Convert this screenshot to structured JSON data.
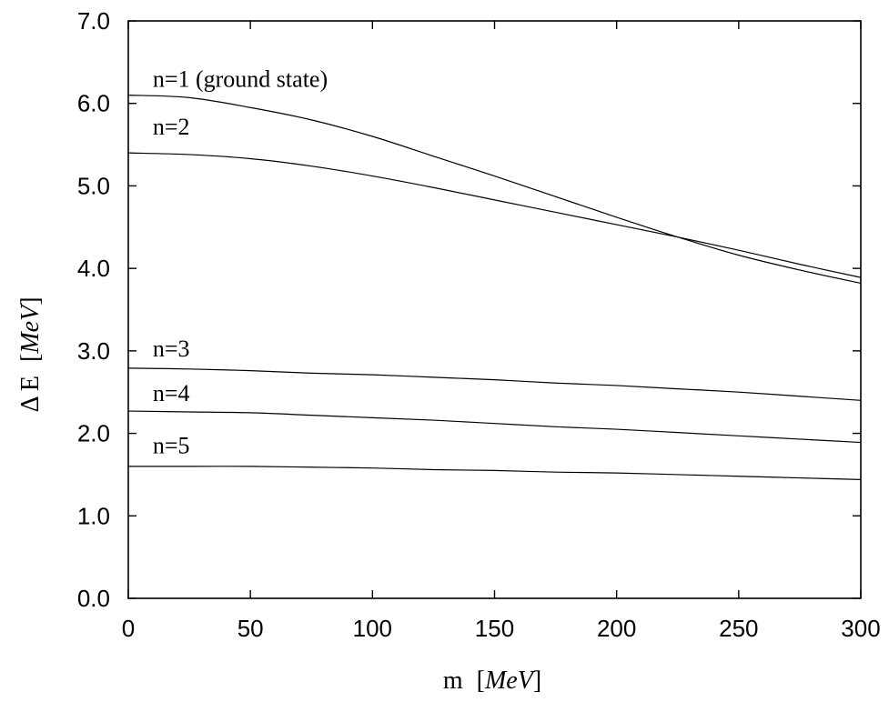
{
  "chart_data": {
    "type": "line",
    "title": "",
    "xlabel": {
      "symbol": "m",
      "unit_open": "[",
      "unit": "MeV",
      "unit_close": "]"
    },
    "ylabel": {
      "symbol": "Δ E",
      "unit_open": "[",
      "unit": "MeV",
      "unit_close": "]"
    },
    "xlim": [
      0,
      300
    ],
    "ylim": [
      0.0,
      7.0
    ],
    "x_ticks": [
      0,
      50,
      100,
      150,
      200,
      250,
      300
    ],
    "x_tick_labels": [
      "0",
      "50",
      "100",
      "150",
      "200",
      "250",
      "300"
    ],
    "y_ticks": [
      0.0,
      1.0,
      2.0,
      3.0,
      4.0,
      5.0,
      6.0,
      7.0
    ],
    "y_tick_labels": [
      "0.0",
      "1.0",
      "2.0",
      "3.0",
      "4.0",
      "5.0",
      "6.0",
      "7.0"
    ],
    "grid": false,
    "x": [
      0,
      25,
      50,
      75,
      100,
      125,
      150,
      175,
      200,
      225,
      250,
      275,
      300
    ],
    "series": [
      {
        "name": "n=1 (ground state)",
        "values": [
          6.1,
          6.07,
          5.95,
          5.8,
          5.6,
          5.36,
          5.12,
          4.87,
          4.62,
          4.38,
          4.16,
          3.98,
          3.82
        ]
      },
      {
        "name": "n=2",
        "values": [
          5.4,
          5.38,
          5.33,
          5.24,
          5.12,
          4.98,
          4.83,
          4.68,
          4.53,
          4.38,
          4.22,
          4.05,
          3.89
        ]
      },
      {
        "name": "n=3",
        "values": [
          2.79,
          2.78,
          2.76,
          2.73,
          2.71,
          2.68,
          2.65,
          2.61,
          2.58,
          2.54,
          2.5,
          2.45,
          2.4
        ]
      },
      {
        "name": "n=4",
        "values": [
          2.27,
          2.26,
          2.25,
          2.22,
          2.19,
          2.16,
          2.12,
          2.08,
          2.05,
          2.01,
          1.97,
          1.93,
          1.89
        ]
      },
      {
        "name": "n=5",
        "values": [
          1.6,
          1.6,
          1.6,
          1.59,
          1.58,
          1.56,
          1.55,
          1.53,
          1.52,
          1.5,
          1.48,
          1.46,
          1.44
        ]
      }
    ],
    "annotations": [
      {
        "text": "n=1 (ground state)",
        "x": 10,
        "y": 6.3
      },
      {
        "text": "n=2",
        "x": 10,
        "y": 5.72
      },
      {
        "text": "n=3",
        "x": 10,
        "y": 3.03
      },
      {
        "text": "n=4",
        "x": 10,
        "y": 2.49
      },
      {
        "text": "n=5",
        "x": 10,
        "y": 1.86
      }
    ]
  }
}
